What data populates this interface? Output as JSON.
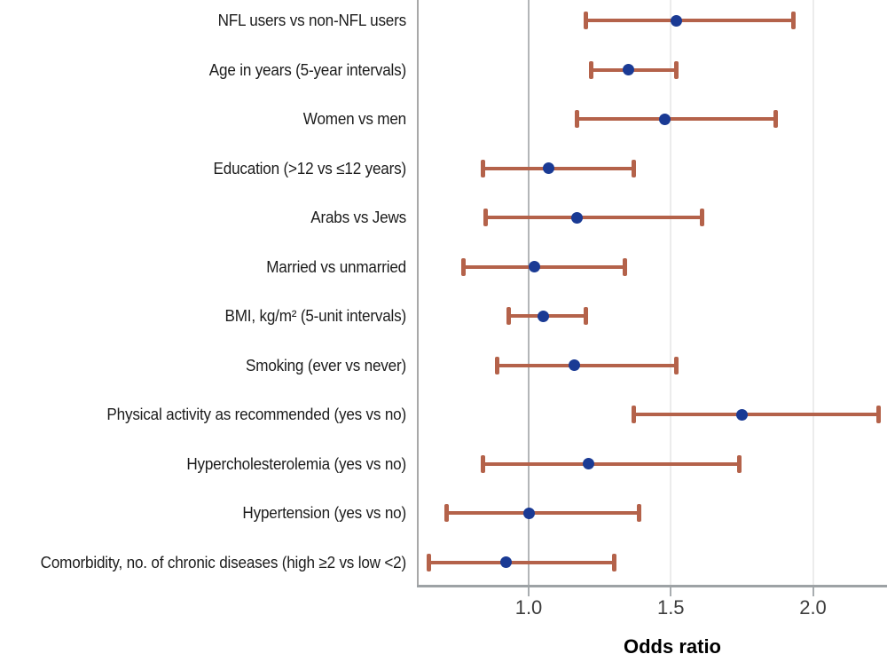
{
  "chart_data": {
    "type": "scatter",
    "subtype": "forest-plot",
    "title": "",
    "xlabel": "Odds ratio",
    "ylabel": "",
    "x_ticks": [
      1.0,
      1.5,
      2.0
    ],
    "x_tick_labels": [
      "1.0",
      "1.5",
      "2.0"
    ],
    "xlim": [
      0.61,
      2.26
    ],
    "reference_line_x": 1.0,
    "grid": "vertical lines at ticks, reference line at 1.0 darker",
    "legend": "none",
    "rows": [
      {
        "label": "NFL users vs non-NFL users",
        "odds_ratio": 1.52,
        "ci_low": 1.2,
        "ci_high": 1.93
      },
      {
        "label": "Age in years (5-year intervals)",
        "odds_ratio": 1.35,
        "ci_low": 1.22,
        "ci_high": 1.52
      },
      {
        "label": "Women vs men",
        "odds_ratio": 1.48,
        "ci_low": 1.17,
        "ci_high": 1.87
      },
      {
        "label": "Education (>12 vs ≤12 years)",
        "odds_ratio": 1.07,
        "ci_low": 0.84,
        "ci_high": 1.37
      },
      {
        "label": "Arabs vs Jews",
        "odds_ratio": 1.17,
        "ci_low": 0.85,
        "ci_high": 1.61
      },
      {
        "label": "Married vs unmarried",
        "odds_ratio": 1.02,
        "ci_low": 0.77,
        "ci_high": 1.34
      },
      {
        "label": "BMI, kg/m² (5-unit intervals)",
        "odds_ratio": 1.05,
        "ci_low": 0.93,
        "ci_high": 1.2
      },
      {
        "label": "Smoking (ever vs never)",
        "odds_ratio": 1.16,
        "ci_low": 0.89,
        "ci_high": 1.52
      },
      {
        "label": "Physical activity as recommended (yes vs no)",
        "odds_ratio": 1.75,
        "ci_low": 1.37,
        "ci_high": 2.23
      },
      {
        "label": "Hypercholesterolemia (yes vs no)",
        "odds_ratio": 1.21,
        "ci_low": 0.84,
        "ci_high": 1.74
      },
      {
        "label": "Hypertension (yes vs no)",
        "odds_ratio": 1.0,
        "ci_low": 0.71,
        "ci_high": 1.39
      },
      {
        "label": "Comorbidity, no. of chronic diseases (high ≥2 vs low <2)",
        "odds_ratio": 0.92,
        "ci_low": 0.65,
        "ci_high": 1.3
      }
    ],
    "colors": {
      "point": "#1a3a94",
      "error_bar": "#b4624a",
      "reference_line": "#b3b6b8",
      "minor_gridline": "#ececec",
      "axis_line": "#9da2a5",
      "plot_border": "#a8a8a8",
      "label_text": "#1c1c1c",
      "tick_text": "#3d3d3d"
    }
  }
}
